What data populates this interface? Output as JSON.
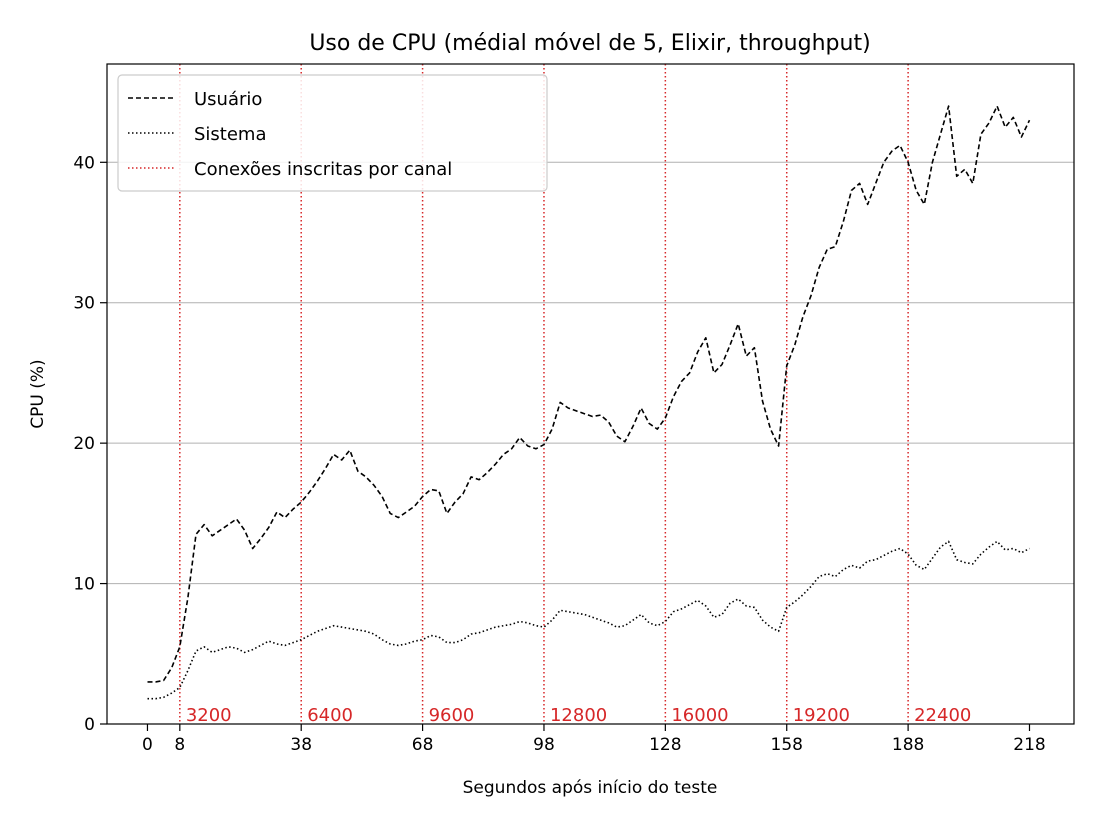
{
  "chart_data": {
    "type": "line",
    "title": "Uso de CPU (médial móvel de 5, Elixir, throughput)",
    "xlabel": "Segundos após início do teste",
    "ylabel": "CPU (%)",
    "xlim": [
      -10,
      229
    ],
    "ylim": [
      0,
      47
    ],
    "xticks": [
      0,
      8,
      38,
      68,
      98,
      128,
      158,
      188,
      218
    ],
    "yticks": [
      0,
      10,
      20,
      30,
      40
    ],
    "grid": "y",
    "legend_position": "top-left",
    "legend": [
      "Usuário",
      "Sistema",
      "Conexões inscritas por canal"
    ],
    "series": [
      {
        "name": "Usuário",
        "style": "dashed",
        "color": "#000000",
        "x": [
          0,
          2,
          4,
          6,
          8,
          10,
          12,
          14,
          16,
          18,
          20,
          22,
          24,
          26,
          28,
          30,
          32,
          34,
          36,
          38,
          40,
          42,
          44,
          46,
          48,
          50,
          52,
          54,
          56,
          58,
          60,
          62,
          64,
          66,
          68,
          70,
          72,
          74,
          76,
          78,
          80,
          82,
          84,
          86,
          88,
          90,
          92,
          94,
          96,
          98,
          100,
          102,
          104,
          106,
          108,
          110,
          112,
          114,
          116,
          118,
          120,
          122,
          124,
          126,
          128,
          130,
          132,
          134,
          136,
          138,
          140,
          142,
          144,
          146,
          148,
          150,
          152,
          154,
          156,
          158,
          160,
          162,
          164,
          166,
          168,
          170,
          172,
          174,
          176,
          178,
          180,
          182,
          184,
          186,
          188,
          190,
          192,
          194,
          196,
          198,
          200,
          202,
          204,
          206,
          208,
          210,
          212,
          214,
          216,
          218
        ],
        "y": [
          3.0,
          3.0,
          3.1,
          4.0,
          5.5,
          9.0,
          13.5,
          14.2,
          13.4,
          13.8,
          14.2,
          14.6,
          13.8,
          12.5,
          13.2,
          14.0,
          15.1,
          14.7,
          15.3,
          15.8,
          16.5,
          17.3,
          18.2,
          19.2,
          18.8,
          19.5,
          18.0,
          17.6,
          17.0,
          16.2,
          15.0,
          14.7,
          15.1,
          15.5,
          16.2,
          16.7,
          16.6,
          15.0,
          15.8,
          16.4,
          17.6,
          17.4,
          17.9,
          18.5,
          19.2,
          19.6,
          20.4,
          19.8,
          19.6,
          19.9,
          21.0,
          22.9,
          22.5,
          22.3,
          22.1,
          21.9,
          22.0,
          21.5,
          20.5,
          20.1,
          21.2,
          22.5,
          21.4,
          21.0,
          21.8,
          23.3,
          24.4,
          25.0,
          26.5,
          27.5,
          25.0,
          25.6,
          27.0,
          28.5,
          26.2,
          26.8,
          23.0,
          21.0,
          19.8,
          25.5,
          27.0,
          29.0,
          30.5,
          32.5,
          33.8,
          34.0,
          35.8,
          38.0,
          38.5,
          37.0,
          38.5,
          40.0,
          40.8,
          41.2,
          40.0,
          38.0,
          37.0,
          40.0,
          42.0,
          44.0,
          39.0,
          39.5,
          38.5,
          42.0,
          42.8,
          44.0,
          42.5,
          43.2,
          41.8,
          43.0
        ]
      },
      {
        "name": "Sistema",
        "style": "dotted",
        "color": "#000000",
        "x": [
          0,
          2,
          4,
          6,
          8,
          10,
          12,
          14,
          16,
          18,
          20,
          22,
          24,
          26,
          28,
          30,
          32,
          34,
          36,
          38,
          40,
          42,
          44,
          46,
          48,
          50,
          52,
          54,
          56,
          58,
          60,
          62,
          64,
          66,
          68,
          70,
          72,
          74,
          76,
          78,
          80,
          82,
          84,
          86,
          88,
          90,
          92,
          94,
          96,
          98,
          100,
          102,
          104,
          106,
          108,
          110,
          112,
          114,
          116,
          118,
          120,
          122,
          124,
          126,
          128,
          130,
          132,
          134,
          136,
          138,
          140,
          142,
          144,
          146,
          148,
          150,
          152,
          154,
          156,
          158,
          160,
          162,
          164,
          166,
          168,
          170,
          172,
          174,
          176,
          178,
          180,
          182,
          184,
          186,
          188,
          190,
          192,
          194,
          196,
          198,
          200,
          202,
          204,
          206,
          208,
          210,
          212,
          214,
          216,
          218
        ],
        "y": [
          1.8,
          1.8,
          1.9,
          2.2,
          2.6,
          3.8,
          5.2,
          5.5,
          5.1,
          5.3,
          5.5,
          5.4,
          5.1,
          5.3,
          5.6,
          5.9,
          5.7,
          5.6,
          5.8,
          6.0,
          6.3,
          6.6,
          6.8,
          7.0,
          6.9,
          6.8,
          6.7,
          6.6,
          6.4,
          6.0,
          5.7,
          5.6,
          5.7,
          5.9,
          6.0,
          6.3,
          6.2,
          5.8,
          5.8,
          6.0,
          6.4,
          6.5,
          6.7,
          6.9,
          7.0,
          7.1,
          7.3,
          7.2,
          7.0,
          6.9,
          7.4,
          8.1,
          8.0,
          7.9,
          7.8,
          7.6,
          7.4,
          7.2,
          6.9,
          7.0,
          7.4,
          7.8,
          7.2,
          7.0,
          7.3,
          8.0,
          8.2,
          8.5,
          8.8,
          8.4,
          7.6,
          7.8,
          8.6,
          8.9,
          8.4,
          8.3,
          7.4,
          6.9,
          6.6,
          8.3,
          8.7,
          9.2,
          9.8,
          10.5,
          10.7,
          10.5,
          11.0,
          11.3,
          11.1,
          11.6,
          11.7,
          12.0,
          12.3,
          12.5,
          12.1,
          11.3,
          11.0,
          11.8,
          12.6,
          13.0,
          11.7,
          11.5,
          11.4,
          12.1,
          12.6,
          13.0,
          12.4,
          12.5,
          12.2,
          12.5
        ]
      }
    ],
    "vlines": {
      "name": "Conexões inscritas por canal",
      "color": "#d62728",
      "style": "dotted",
      "x": [
        8,
        38,
        68,
        98,
        128,
        158,
        188
      ],
      "labels": [
        "3200",
        "6400",
        "9600",
        "12800",
        "16000",
        "19200",
        "22400"
      ]
    }
  }
}
